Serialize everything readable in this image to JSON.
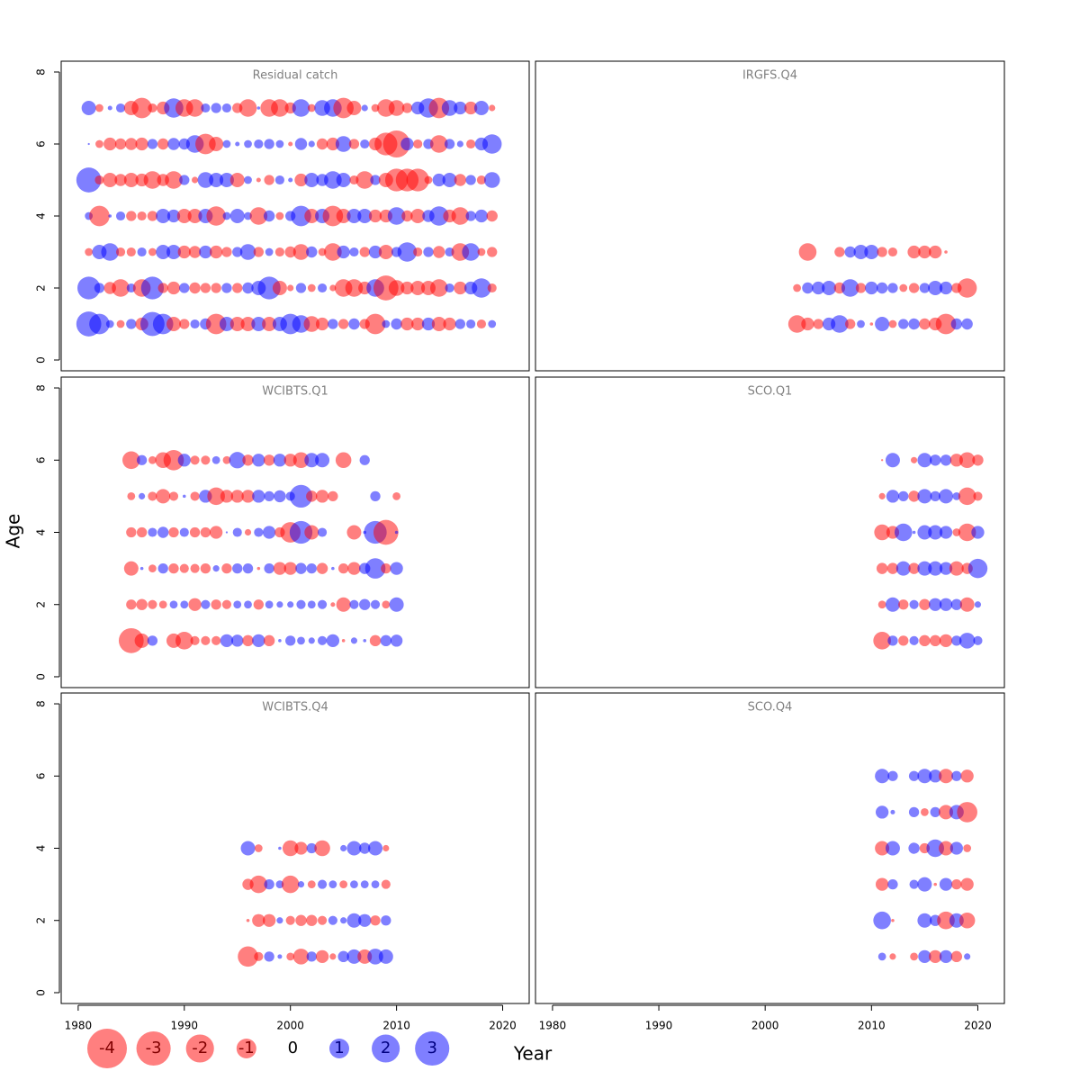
{
  "chart_data": {
    "type": "bubble",
    "xlabel": "Year",
    "ylabel": "Age",
    "xlim": [
      1978.4,
      2022.5
    ],
    "xticks": [
      1980,
      1990,
      2000,
      2010,
      2020
    ],
    "ylim": [
      -0.3,
      8.3
    ],
    "yticks": [
      0,
      2,
      4,
      6,
      8
    ],
    "neg_color": "#ff0000",
    "pos_color": "#0000ff",
    "opacity": 0.5,
    "legend_values": [
      -4,
      -3,
      -2,
      -1,
      0,
      1,
      2,
      3
    ],
    "panels": [
      {
        "title": "Residual catch",
        "x": [
          1981,
          1982,
          1983,
          1984,
          1985,
          1986,
          1987,
          1988,
          1989,
          1990,
          1991,
          1992,
          1993,
          1994,
          1995,
          1996,
          1997,
          1998,
          1999,
          2000,
          2001,
          2002,
          2003,
          2004,
          2005,
          2006,
          2007,
          2008,
          2009,
          2010,
          2011,
          2012,
          2013,
          2014,
          2015,
          2016,
          2017,
          2018,
          2019
        ],
        "ages": [
          1,
          2,
          3,
          4,
          5,
          6,
          7
        ],
        "values": [
          [
            3.0,
            2.0,
            0.3,
            -0.3,
            0.5,
            -0.8,
            2.8,
            2.0,
            -1.0,
            -0.5,
            0.4,
            0.6,
            -2.0,
            1.0,
            -1.0,
            -1.0,
            1.0,
            -1.0,
            1.0,
            2.0,
            1.5,
            -1.2,
            -0.8,
            0.5,
            -0.5,
            0.6,
            -0.5,
            -2.0,
            0.3,
            0.6,
            -0.8,
            -0.8,
            0.8,
            -1.0,
            -0.8,
            0.5,
            0.4,
            -0.4,
            0.3
          ],
          [
            2.5,
            0.5,
            -0.7,
            -1.5,
            0.4,
            -1.5,
            2.5,
            -0.5,
            -0.8,
            0.5,
            -0.6,
            -0.5,
            -0.5,
            0.5,
            -0.5,
            0.6,
            1.0,
            2.5,
            -1.0,
            -0.2,
            0.5,
            -0.3,
            0.4,
            -0.2,
            -1.5,
            -1.5,
            -0.8,
            1.5,
            -3.0,
            -1.2,
            -0.8,
            -1.0,
            -1.0,
            -1.5,
            0.4,
            -0.8,
            0.8,
            1.8,
            -0.4
          ],
          [
            -0.3,
            1.0,
            1.5,
            -0.4,
            -0.4,
            0.4,
            -0.3,
            1.0,
            1.0,
            -0.8,
            -0.7,
            0.8,
            -0.8,
            -0.5,
            0.5,
            1.2,
            -0.5,
            0.3,
            -0.4,
            -0.6,
            -1.2,
            0.6,
            -0.3,
            -1.5,
            0.8,
            0.4,
            -0.5,
            0.8,
            -1.0,
            0.5,
            1.8,
            -0.4,
            0.5,
            -0.7,
            0.4,
            -1.5,
            1.5,
            -0.3,
            -0.5
          ],
          [
            0.3,
            -2.0,
            0.05,
            0.4,
            -0.5,
            -0.4,
            -0.5,
            1.0,
            0.8,
            -1.0,
            -1.0,
            1.0,
            -1.8,
            0.3,
            1.0,
            0.3,
            -1.5,
            0.6,
            -0.3,
            0.5,
            2.0,
            -1.0,
            1.0,
            -2.0,
            -1.0,
            1.0,
            1.0,
            -0.8,
            -0.8,
            1.5,
            -0.6,
            -1.0,
            0.7,
            1.8,
            -0.8,
            -1.5,
            0.5,
            0.8,
            -0.6
          ],
          [
            3.0,
            -0.4,
            -1.0,
            -0.7,
            -1.0,
            -0.8,
            -1.5,
            -0.7,
            -1.5,
            0.5,
            -0.2,
            1.2,
            1.0,
            1.0,
            -1.0,
            0.3,
            -0.1,
            -0.5,
            0.4,
            0.1,
            -0.8,
            1.0,
            0.7,
            1.5,
            1.0,
            -0.4,
            -1.5,
            0.5,
            -1.0,
            -2.5,
            -2.5,
            -2.5,
            -0.3,
            0.8,
            1.0,
            -0.7,
            0.5,
            -0.4,
            1.2
          ],
          [
            0.02,
            -0.3,
            -0.8,
            -0.6,
            -0.7,
            -0.8,
            0.5,
            -0.6,
            0.7,
            0.6,
            1.5,
            -2.0,
            -1.0,
            0.3,
            0.1,
            0.3,
            0.4,
            0.5,
            0.3,
            -0.1,
            0.7,
            0.2,
            -0.6,
            -0.8,
            1.2,
            -0.5,
            0.4,
            -0.8,
            -2.5,
            -3.5,
            0.8,
            -0.4,
            0.5,
            -1.5,
            0.5,
            0.2,
            -0.4,
            0.8,
            1.8
          ],
          [
            1.0,
            -0.3,
            0.1,
            0.4,
            -1.0,
            -2.0,
            -0.4,
            -0.8,
            1.8,
            -1.5,
            -1.5,
            0.4,
            0.5,
            0.4,
            -0.5,
            -1.5,
            0.05,
            -1.5,
            -1.5,
            -0.6,
            1.5,
            -0.3,
            1.2,
            1.5,
            -2.0,
            -1.0,
            0.2,
            -0.3,
            -1.5,
            -1.2,
            -0.5,
            0.8,
            1.8,
            -2.0,
            1.2,
            0.8,
            -0.8,
            1.0,
            -0.2
          ]
        ]
      },
      {
        "title": "IRGFS.Q4",
        "x": [
          2003,
          2004,
          2005,
          2006,
          2007,
          2008,
          2009,
          2010,
          2011,
          2012,
          2013,
          2014,
          2015,
          2016,
          2017,
          2018,
          2019
        ],
        "ages": [
          1,
          2,
          3
        ],
        "values": [
          [
            -1.5,
            -0.8,
            -0.5,
            0.8,
            1.5,
            -0.5,
            0.3,
            -0.05,
            1.0,
            -0.3,
            0.5,
            0.6,
            -0.6,
            -0.8,
            -2.0,
            0.6,
            0.6
          ],
          [
            -0.3,
            0.6,
            0.8,
            1.0,
            -0.6,
            1.5,
            -0.5,
            0.8,
            0.6,
            0.5,
            -0.3,
            -0.5,
            0.5,
            1.0,
            0.8,
            -0.5,
            -1.8
          ],
          [
            null,
            -1.5,
            null,
            null,
            -0.5,
            0.6,
            1.0,
            1.0,
            -0.5,
            -0.4,
            null,
            -0.8,
            -0.8,
            -0.8,
            -0.05,
            null,
            null
          ]
        ]
      },
      {
        "title": "WCIBTS.Q1",
        "x": [
          1985,
          1986,
          1987,
          1988,
          1989,
          1990,
          1991,
          1992,
          1993,
          1994,
          1995,
          1996,
          1997,
          1998,
          1999,
          2000,
          2001,
          2002,
          2003,
          2004,
          2005,
          2006,
          2007,
          2008,
          2009,
          2010
        ],
        "ages": [
          1,
          2,
          3,
          4,
          5,
          6
        ],
        "values": [
          [
            -3.0,
            -1.0,
            0.5,
            null,
            -1.0,
            -1.5,
            -0.4,
            -0.4,
            -0.4,
            0.8,
            0.7,
            -0.6,
            0.8,
            -0.6,
            0.05,
            0.5,
            0.3,
            0.2,
            0.4,
            0.8,
            -0.05,
            0.2,
            0.05,
            -0.6,
            0.6,
            0.7
          ],
          [
            -0.5,
            -0.6,
            -0.4,
            -0.3,
            0.3,
            0.3,
            -0.8,
            0.4,
            -0.5,
            -0.4,
            0.3,
            0.3,
            -0.5,
            0.3,
            0.2,
            0.2,
            0.4,
            0.3,
            0.4,
            -0.1,
            -1.0,
            0.4,
            0.6,
            0.4,
            -0.3,
            1.0
          ],
          [
            -1.0,
            0.05,
            -0.3,
            0.5,
            -0.5,
            -0.4,
            -0.4,
            -0.5,
            0.2,
            -0.5,
            0.5,
            0.5,
            -0.05,
            0.5,
            -0.8,
            -0.8,
            0.6,
            0.5,
            -0.6,
            0.05,
            -0.5,
            -0.8,
            0.6,
            2.0,
            -0.5,
            0.8
          ],
          [
            -0.5,
            -0.5,
            0.4,
            0.6,
            -0.5,
            0.4,
            -0.5,
            -0.5,
            -0.8,
            0.02,
            0.4,
            -0.2,
            0.4,
            0.8,
            -0.5,
            -2.0,
            2.5,
            -1.0,
            0.4,
            null,
            null,
            -1.0,
            0.05,
            2.5,
            -3.0,
            0.05
          ],
          [
            -0.3,
            0.2,
            -0.4,
            -1.0,
            -0.4,
            0.05,
            -0.4,
            0.8,
            -1.5,
            -0.8,
            -0.8,
            -0.8,
            0.8,
            0.5,
            0.7,
            0.4,
            2.5,
            -0.6,
            -0.8,
            -0.5,
            null,
            null,
            null,
            0.5,
            null,
            -0.3
          ],
          [
            -1.5,
            0.5,
            -0.3,
            -1.2,
            -2.0,
            0.8,
            -0.4,
            -0.4,
            0.3,
            -0.3,
            1.3,
            -0.6,
            0.8,
            -0.6,
            0.8,
            -0.8,
            -1.2,
            1.0,
            1.0,
            null,
            -1.2,
            null,
            0.5,
            null,
            null,
            null
          ]
        ]
      },
      {
        "title": "SCO.Q1",
        "x": [
          2011,
          2012,
          2013,
          2014,
          2015,
          2016,
          2017,
          2018,
          2019,
          2020
        ],
        "ages": [
          1,
          2,
          3,
          4,
          5,
          6
        ],
        "values": [
          [
            -1.5,
            0.5,
            -0.5,
            0.4,
            -0.6,
            -0.6,
            -0.8,
            0.5,
            1.2,
            0.4
          ],
          [
            -0.3,
            1.0,
            -0.5,
            0.4,
            -0.6,
            0.8,
            0.8,
            0.6,
            -1.0,
            0.2
          ],
          [
            -0.6,
            -0.6,
            1.0,
            -0.6,
            1.0,
            1.0,
            0.8,
            -1.0,
            -0.6,
            1.8
          ],
          [
            -1.2,
            -0.8,
            1.5,
            0.05,
            1.0,
            1.0,
            0.8,
            -0.3,
            -1.5,
            0.8
          ],
          [
            -0.2,
            0.8,
            0.5,
            -0.6,
            1.0,
            0.5,
            1.0,
            0.3,
            -1.5,
            -0.4
          ],
          [
            -0.02,
            1.0,
            null,
            -0.2,
            1.0,
            0.6,
            0.6,
            -0.8,
            -1.2,
            -0.6
          ]
        ]
      },
      {
        "title": "WCIBTS.Q4",
        "x": [
          1996,
          1997,
          1998,
          1999,
          2000,
          2001,
          2002,
          2003,
          2004,
          2005,
          2006,
          2007,
          2008,
          2009
        ],
        "ages": [
          1,
          2,
          3,
          4
        ],
        "values": [
          [
            -2.0,
            -0.4,
            0.5,
            0.1,
            -0.3,
            -1.2,
            0.5,
            -0.8,
            -0.2,
            0.6,
            1.0,
            -1.0,
            1.2,
            1.0
          ],
          [
            -0.05,
            -0.8,
            -0.8,
            0.2,
            -0.4,
            -0.6,
            -0.6,
            -0.4,
            0.4,
            0.2,
            1.0,
            0.8,
            -0.5,
            0.5
          ],
          [
            -0.6,
            -1.5,
            0.5,
            0.3,
            -1.5,
            0.2,
            -0.3,
            0.4,
            0.3,
            -0.3,
            0.3,
            0.3,
            0.3,
            -0.4
          ],
          [
            1.0,
            -0.3,
            null,
            0.05,
            -1.2,
            -0.8,
            0.5,
            -1.2,
            null,
            0.2,
            1.0,
            0.6,
            1.0,
            -0.2
          ]
        ]
      },
      {
        "title": "SCO.Q4",
        "x": [
          2011,
          2012,
          2013,
          2014,
          2015,
          2016,
          2017,
          2018,
          2019
        ],
        "ages": [
          1,
          2,
          3,
          4,
          5,
          6
        ],
        "values": [
          [
            0.3,
            -0.2,
            null,
            -0.3,
            0.8,
            -0.8,
            0.8,
            -0.6,
            0.2
          ],
          [
            1.5,
            -0.05,
            null,
            null,
            1.0,
            0.6,
            -1.5,
            1.0,
            -1.2
          ],
          [
            -0.8,
            0.5,
            null,
            0.4,
            1.0,
            -0.05,
            0.8,
            -0.5,
            -0.8
          ],
          [
            -1.0,
            1.0,
            null,
            0.6,
            -0.5,
            1.5,
            -1.0,
            0.8,
            -0.3
          ],
          [
            0.8,
            0.1,
            null,
            0.5,
            -0.3,
            0.5,
            -1.0,
            1.0,
            -2.0
          ],
          [
            1.0,
            0.5,
            null,
            0.5,
            1.0,
            0.8,
            -1.0,
            0.5,
            -0.8
          ]
        ]
      }
    ]
  }
}
